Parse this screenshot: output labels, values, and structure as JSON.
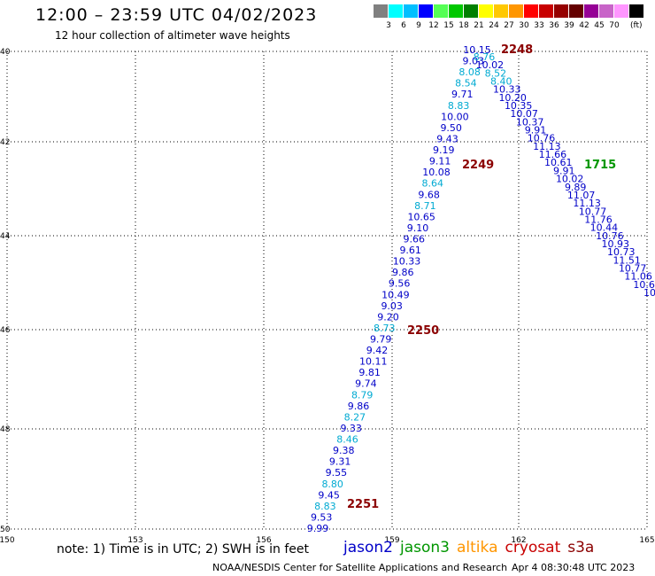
{
  "title": "12:00 – 23:59 UTC 04/02/2023",
  "subtitle": "12 hour collection of altimeter wave heights",
  "legend": {
    "colors": [
      "#808080",
      "#00ffff",
      "#00bfff",
      "#0000ff",
      "#55ff55",
      "#00c800",
      "#008000",
      "#ffff00",
      "#ffc800",
      "#ff9600",
      "#ff0000",
      "#c80000",
      "#960000",
      "#640000",
      "#960096",
      "#c864c8",
      "#ff96ff",
      "#000000"
    ],
    "labels": [
      "3",
      "6",
      "9",
      "12",
      "15",
      "18",
      "21",
      "24",
      "27",
      "30",
      "33",
      "36",
      "39",
      "42",
      "45",
      "70"
    ],
    "unit": "(ft)"
  },
  "axes": {
    "lat_labels": [
      "40",
      "42",
      "44",
      "46",
      "48",
      "50"
    ],
    "lon_labels": [
      "150",
      "153",
      "156",
      "159",
      "162",
      "165"
    ]
  },
  "track_colors": {
    "blue": "#0000c8",
    "cyan": "#00aad2",
    "time": "#8b0000",
    "green": "#009600"
  },
  "tracks": [
    {
      "points": [
        {
          "v": "9.99",
          "c": "blue"
        },
        {
          "v": "9.53",
          "c": "blue"
        },
        {
          "v": "8.83",
          "c": "cyan"
        },
        {
          "v": "9.45",
          "c": "blue"
        },
        {
          "v": "8.80",
          "c": "cyan"
        },
        {
          "v": "9.55",
          "c": "blue"
        },
        {
          "v": "9.31",
          "c": "blue"
        },
        {
          "v": "9.38",
          "c": "blue"
        },
        {
          "v": "8.46",
          "c": "cyan"
        },
        {
          "v": "9.33",
          "c": "blue"
        },
        {
          "v": "8.27",
          "c": "cyan"
        },
        {
          "v": "9.86",
          "c": "blue"
        },
        {
          "v": "8.79",
          "c": "cyan"
        },
        {
          "v": "9.74",
          "c": "blue"
        },
        {
          "v": "9.81",
          "c": "blue"
        },
        {
          "v": "10.11",
          "c": "blue"
        },
        {
          "v": "9.42",
          "c": "blue"
        },
        {
          "v": "9.79",
          "c": "blue"
        },
        {
          "v": "8.73",
          "c": "cyan"
        },
        {
          "v": "9.20",
          "c": "blue"
        },
        {
          "v": "9.03",
          "c": "blue"
        },
        {
          "v": "10.49",
          "c": "blue"
        },
        {
          "v": "9.56",
          "c": "blue"
        },
        {
          "v": "9.86",
          "c": "blue"
        },
        {
          "v": "10.33",
          "c": "blue"
        },
        {
          "v": "9.61",
          "c": "blue"
        },
        {
          "v": "9.66",
          "c": "blue"
        },
        {
          "v": "9.10",
          "c": "blue"
        },
        {
          "v": "10.65",
          "c": "blue"
        },
        {
          "v": "8.71",
          "c": "cyan"
        },
        {
          "v": "9.68",
          "c": "blue"
        },
        {
          "v": "8.64",
          "c": "cyan"
        },
        {
          "v": "10.08",
          "c": "blue"
        },
        {
          "v": "9.11",
          "c": "blue"
        },
        {
          "v": "9.19",
          "c": "blue"
        },
        {
          "v": "9.43",
          "c": "blue"
        },
        {
          "v": "9.50",
          "c": "blue"
        },
        {
          "v": "10.00",
          "c": "blue"
        },
        {
          "v": "8.83",
          "c": "cyan"
        },
        {
          "v": "9.71",
          "c": "blue"
        },
        {
          "v": "8.54",
          "c": "cyan"
        },
        {
          "v": "8.08",
          "c": "cyan"
        },
        {
          "v": "9.03",
          "c": "blue"
        },
        {
          "v": "10.15",
          "c": "blue"
        }
      ]
    },
    {
      "points": [
        {
          "v": "8.76",
          "c": "cyan"
        },
        {
          "v": "10.02",
          "c": "blue"
        },
        {
          "v": "8.52",
          "c": "cyan"
        },
        {
          "v": "8.40",
          "c": "cyan"
        },
        {
          "v": "10.33",
          "c": "blue"
        },
        {
          "v": "10.20",
          "c": "blue"
        },
        {
          "v": "10.35",
          "c": "blue"
        },
        {
          "v": "10.07",
          "c": "blue"
        },
        {
          "v": "10.37",
          "c": "blue"
        },
        {
          "v": "9.91",
          "c": "blue"
        },
        {
          "v": "10.76",
          "c": "blue"
        },
        {
          "v": "11.13",
          "c": "blue"
        },
        {
          "v": "11.66",
          "c": "blue"
        },
        {
          "v": "10.61",
          "c": "blue"
        },
        {
          "v": "9.91",
          "c": "blue"
        },
        {
          "v": "10.02",
          "c": "blue"
        },
        {
          "v": "9.89",
          "c": "blue"
        },
        {
          "v": "11.07",
          "c": "blue"
        },
        {
          "v": "11.13",
          "c": "blue"
        },
        {
          "v": "10.77",
          "c": "blue"
        },
        {
          "v": "11.76",
          "c": "blue"
        },
        {
          "v": "10.44",
          "c": "blue"
        },
        {
          "v": "10.76",
          "c": "blue"
        },
        {
          "v": "10.93",
          "c": "blue"
        },
        {
          "v": "10.73",
          "c": "blue"
        },
        {
          "v": "11.51",
          "c": "blue"
        },
        {
          "v": "10.77",
          "c": "blue"
        },
        {
          "v": "11.06",
          "c": "blue"
        },
        {
          "v": "10.6",
          "c": "blue"
        },
        {
          "v": "10",
          "c": "blue"
        }
      ]
    }
  ],
  "time_labels": [
    {
      "text": "2248",
      "c": "time"
    },
    {
      "text": "2249",
      "c": "time"
    },
    {
      "text": "1715",
      "c": "green"
    },
    {
      "text": "2250",
      "c": "time"
    },
    {
      "text": "2251",
      "c": "time"
    }
  ],
  "note": "note: 1) Time is in UTC; 2) SWH is in feet",
  "satellites": [
    {
      "name": "jason2",
      "color": "#0000c8"
    },
    {
      "name": "jason3",
      "color": "#009600"
    },
    {
      "name": "altika",
      "color": "#ff9600"
    },
    {
      "name": "cryosat",
      "color": "#c80000"
    },
    {
      "name": "s3a",
      "color": "#8b0000"
    }
  ],
  "credit": "NOAA/NESDIS Center for Satellite Applications and Research",
  "timestamp": "Apr  4 08:30:48 UTC 2023"
}
